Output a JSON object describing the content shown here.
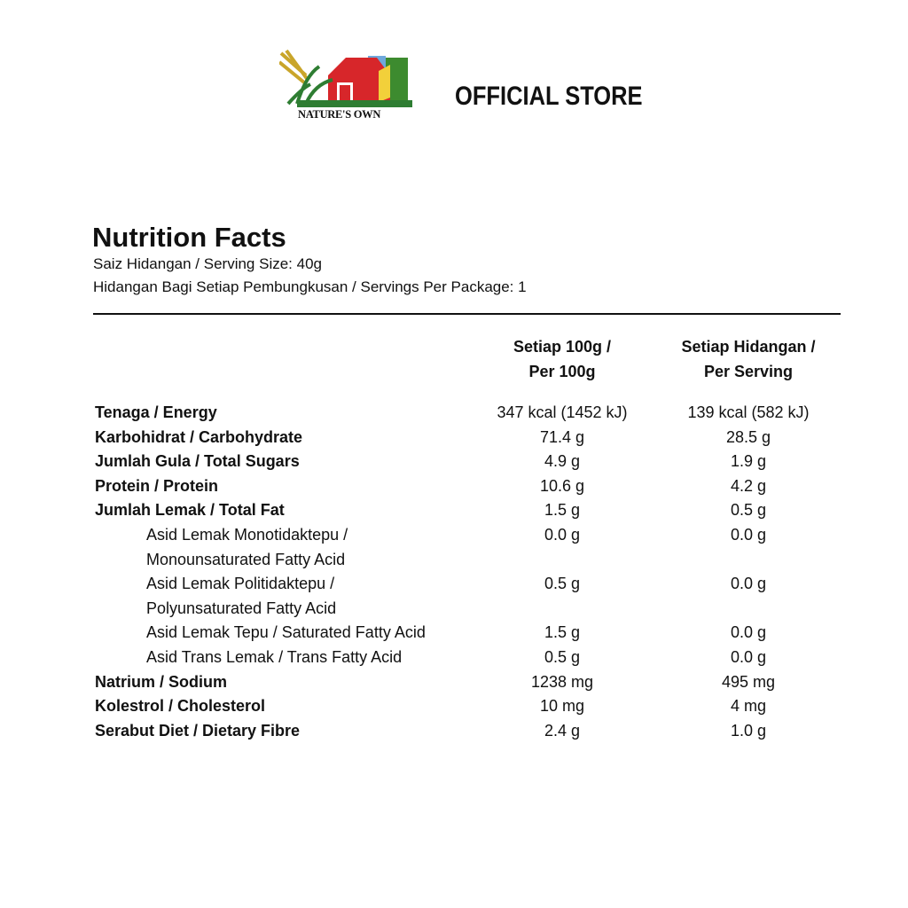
{
  "header": {
    "brand": "NATURE'S OWN",
    "store": "OFFICIAL STORE"
  },
  "nutrition": {
    "title": "Nutrition Facts",
    "serving_size": "Saiz Hidangan / Serving Size: 40g",
    "servings_per_package": "Hidangan Bagi Setiap Pembungkusan / Servings Per Package: 1",
    "columns": [
      [
        "Setiap 100g /",
        "Per 100g"
      ],
      [
        "Setiap Hidangan /",
        "Per Serving"
      ]
    ],
    "rows": [
      {
        "label": [
          "Tenaga / Energy"
        ],
        "bold": true,
        "values": [
          "347 kcal (1452 kJ)",
          "139 kcal (582 kJ)"
        ]
      },
      {
        "label": [
          "Karbohidrat / Carbohydrate"
        ],
        "bold": true,
        "values": [
          "71.4 g",
          "28.5 g"
        ]
      },
      {
        "label": [
          "Jumlah Gula / Total Sugars"
        ],
        "bold": true,
        "values": [
          "4.9 g",
          "1.9 g"
        ]
      },
      {
        "label": [
          "Protein / Protein"
        ],
        "bold": true,
        "values": [
          "10.6 g",
          "4.2 g"
        ]
      },
      {
        "label": [
          "Jumlah Lemak / Total Fat"
        ],
        "bold": true,
        "values": [
          "1.5 g",
          "0.5 g"
        ]
      },
      {
        "label": [
          "Asid Lemak Monotidaktepu /",
          "Monounsaturated Fatty Acid"
        ],
        "bold": false,
        "values": [
          "0.0 g",
          "0.0 g"
        ]
      },
      {
        "label": [
          "Asid Lemak Politidaktepu /",
          "Polyunsaturated Fatty Acid"
        ],
        "bold": false,
        "values": [
          "0.5 g",
          "0.0 g"
        ]
      },
      {
        "label": [
          "Asid Lemak Tepu / Saturated Fatty Acid"
        ],
        "bold": false,
        "values": [
          "1.5 g",
          "0.0 g"
        ]
      },
      {
        "label": [
          "Asid Trans Lemak / Trans Fatty Acid"
        ],
        "bold": false,
        "values": [
          "0.5 g",
          "0.0 g"
        ]
      },
      {
        "label": [
          "Natrium / Sodium"
        ],
        "bold": true,
        "values": [
          "1238 mg",
          "495 mg"
        ]
      },
      {
        "label": [
          "Kolestrol / Cholesterol"
        ],
        "bold": true,
        "values": [
          "10 mg",
          "4 mg"
        ]
      },
      {
        "label": [
          "Serabut Diet / Dietary Fibre"
        ],
        "bold": true,
        "values": [
          "2.4 g",
          "1.0 g"
        ]
      }
    ]
  }
}
